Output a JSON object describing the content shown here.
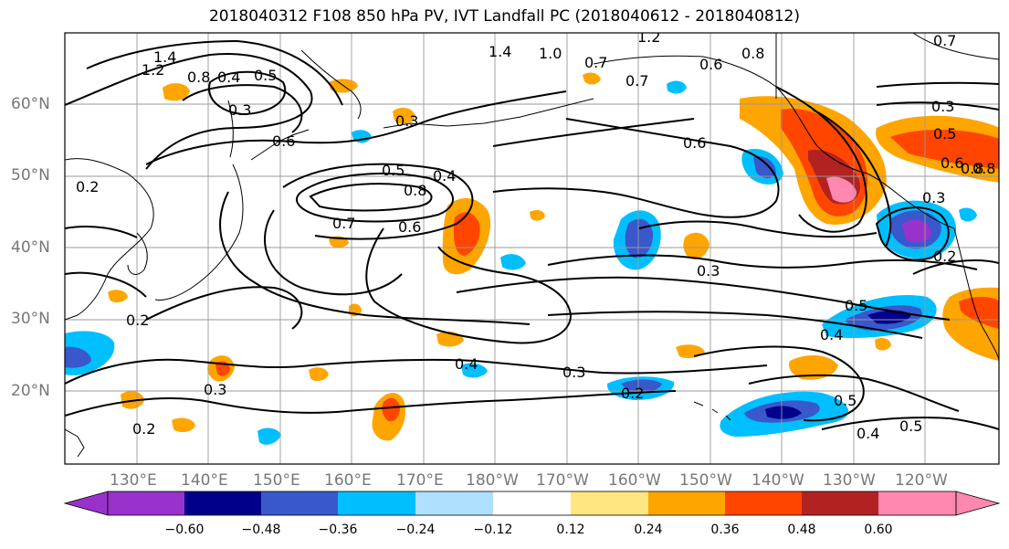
{
  "title": "2018040312 F108 850 hPa PV, IVT Landfall PC (2018040612 - 2018040812)",
  "lat_labels": [
    "60°N",
    "50°N",
    "40°N",
    "30°N",
    "20°N"
  ],
  "lon_labels": [
    "130°E",
    "140°E",
    "150°E",
    "160°E",
    "170°E",
    "180°W",
    "170°W",
    "160°W",
    "150°W",
    "140°W",
    "130°W",
    "120°W"
  ],
  "colorbar": {
    "ticks": [
      "−0.60",
      "−0.48",
      "−0.36",
      "−0.24",
      "−0.12",
      "0.12",
      "0.24",
      "0.36",
      "0.48",
      "0.60"
    ],
    "colors": [
      "#9932cc",
      "#00008b",
      "#3858cc",
      "#00bfff",
      "#b0e0ff",
      "#ffffff",
      "#ffe680",
      "#ffa500",
      "#ff4500",
      "#b22222",
      "#ff88b0"
    ]
  },
  "contour_labels": [
    "1.4",
    "1.2",
    "0.8",
    "0.4",
    "0.5",
    "0.3",
    "0.6",
    "0.5",
    "0.4",
    "0.8",
    "0.7",
    "0.6",
    "0.2",
    "0.2",
    "0.3",
    "0.2",
    "0.4",
    "0.3",
    "0.2",
    "0.5",
    "0.4",
    "0.5",
    "0.4",
    "0.5",
    "0.3",
    "0.6",
    "0.8",
    "0.7",
    "0.7",
    "0.6",
    "0.8",
    "0.3",
    "0.5",
    "0.6",
    "0.8",
    "0.3",
    "0.2",
    "0.3",
    "1.4",
    "1.0",
    "1.2",
    "0.7"
  ]
}
